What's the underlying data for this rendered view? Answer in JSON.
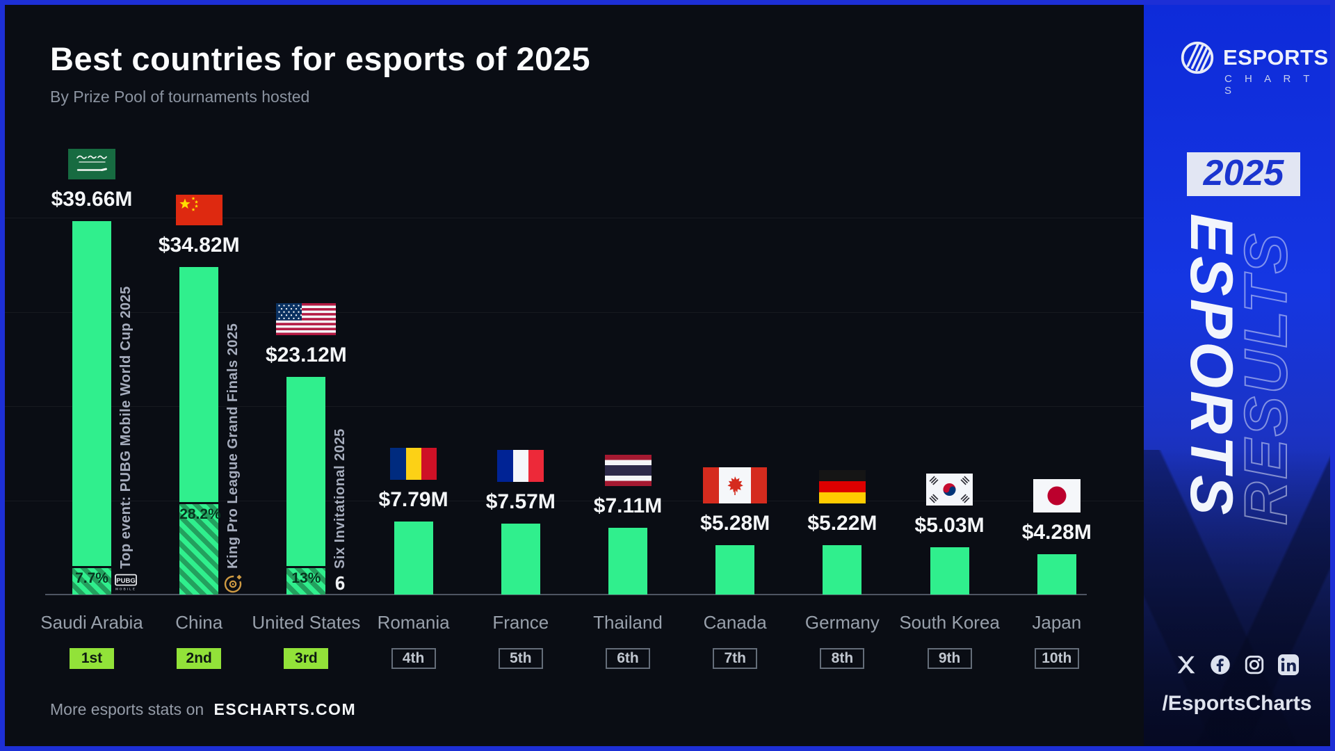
{
  "header": {
    "title": "Best countries for esports of 2025",
    "subtitle": "By Prize Pool of tournaments hosted"
  },
  "footer": {
    "prefix": "More esports stats on",
    "brand": "ESCHARTS.COM"
  },
  "sidebar": {
    "brand_name": "ESPORTS",
    "brand_sub": "C H A R T S",
    "year": "2025",
    "vertical_solid": "ESPORTS",
    "vertical_outline": "RESULTS",
    "social_icons": [
      "x",
      "facebook",
      "instagram",
      "linkedin"
    ],
    "handle": "/EsportsCharts"
  },
  "colors": {
    "background": "#0a0d14",
    "frame_blue": "#1d2fd6",
    "sidebar_blue_top": "#0e2bd9",
    "bar_green": "#30ef8d",
    "hatch_green": "#23a05e",
    "badge_green": "#92e239",
    "gold_accent": "#cf9b43"
  },
  "chart_data": {
    "type": "bar",
    "title": "Best countries for esports of 2025",
    "subtitle": "By Prize Pool of tournaments hosted",
    "unit": "USD millions (tournament prize pool hosted)",
    "ylim": [
      0,
      40
    ],
    "gridline_step": 10,
    "grid": true,
    "legend": "none",
    "categories": [
      "Saudi Arabia",
      "China",
      "United States",
      "Romania",
      "France",
      "Thailand",
      "Canada",
      "Germany",
      "South Korea",
      "Japan"
    ],
    "values": [
      39.66,
      34.82,
      23.12,
      7.79,
      7.57,
      7.11,
      5.28,
      5.22,
      5.03,
      4.28
    ],
    "value_labels": [
      "$39.66M",
      "$34.82M",
      "$23.12M",
      "$7.79M",
      "$7.57M",
      "$7.11M",
      "$5.28M",
      "$5.22M",
      "$5.03M",
      "$4.28M"
    ],
    "ranks": [
      "1st",
      "2nd",
      "3rd",
      "4th",
      "5th",
      "6th",
      "7th",
      "8th",
      "9th",
      "10th"
    ],
    "flags": [
      "saudi-arabia",
      "china",
      "united-states",
      "romania",
      "france",
      "thailand",
      "canada",
      "germany",
      "south-korea",
      "japan"
    ],
    "top_events": [
      {
        "index": 0,
        "label": "Top event: PUBG Mobile World Cup 2025",
        "share_label": "7.7%",
        "share_pct": 7.7,
        "icon": "pubg-mobile"
      },
      {
        "index": 1,
        "label": "King Pro League Grand Finals 2025",
        "share_label": "28.2%",
        "share_pct": 28.2,
        "icon": "king-pro-league"
      },
      {
        "index": 2,
        "label": "Six Invitational 2025",
        "share_label": "13%",
        "share_pct": 13,
        "icon": "six-invitational"
      }
    ]
  }
}
